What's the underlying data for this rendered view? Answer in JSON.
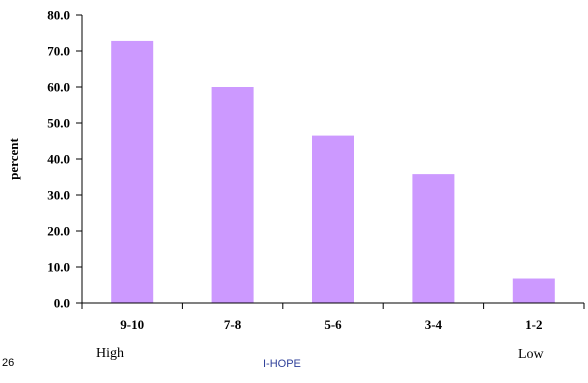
{
  "chart_data": {
    "type": "bar",
    "title": "",
    "xlabel": "",
    "ylabel": "percent",
    "categories": [
      "9-10",
      "7-8",
      "5-6",
      "3-4",
      "1-2"
    ],
    "values": [
      72.8,
      60.0,
      46.5,
      35.8,
      6.8
    ],
    "ylim": [
      0,
      80
    ],
    "yticks": [
      "0.0",
      "10.0",
      "20.0",
      "30.0",
      "40.0",
      "50.0",
      "60.0",
      "70.0",
      "80.0"
    ],
    "grid": false,
    "legend": "none",
    "bar_color": "#cc99ff"
  },
  "annotations": {
    "high": "High",
    "low": "Low"
  },
  "footer": {
    "slide_number": "26",
    "brand": "I-HOPE"
  },
  "colors": {
    "brand_text": "#2e3f99",
    "axis": "#000000"
  }
}
